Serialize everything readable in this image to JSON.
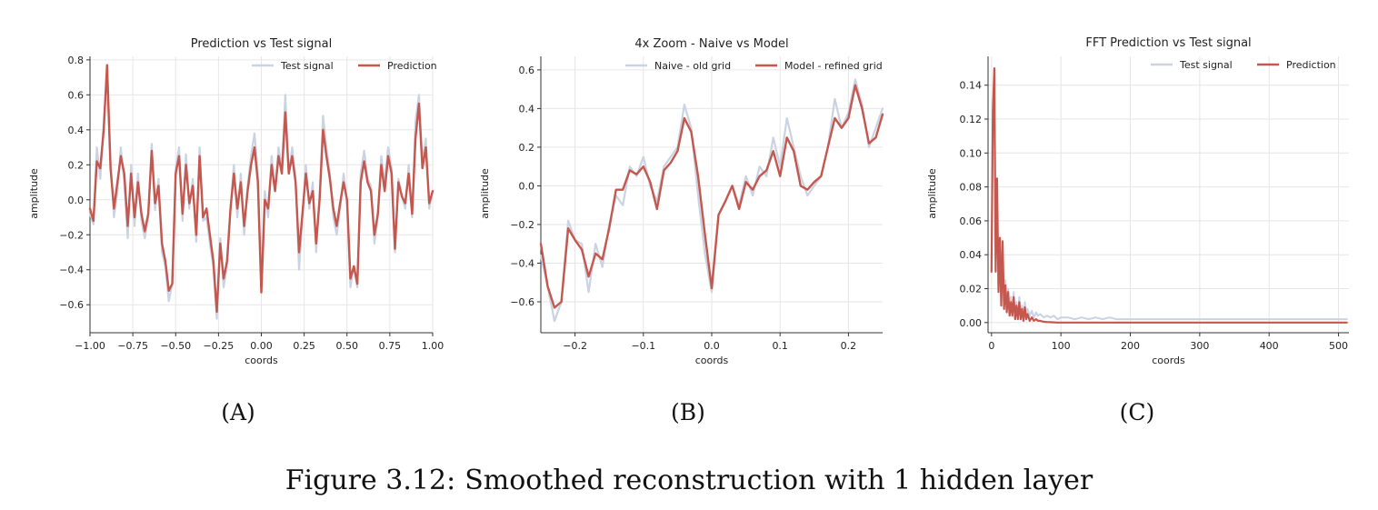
{
  "caption": {
    "label": "Figure 3.12:",
    "text": "Smoothed reconstruction with 1 hidden layer"
  },
  "colors": {
    "test": "#c9d3e3",
    "prediction": "#c4574e"
  },
  "chart_data": [
    {
      "id": "A",
      "sublabel": "(A)",
      "type": "line",
      "title": "Prediction vs Test signal",
      "xlabel": "coords",
      "ylabel": "amplitude",
      "xlim": [
        -1.0,
        1.0
      ],
      "ylim": [
        -0.76,
        0.82
      ],
      "xticks": [
        -1.0,
        -0.75,
        -0.5,
        -0.25,
        0.0,
        0.25,
        0.5,
        0.75,
        1.0
      ],
      "xtick_labels": [
        "−1.00",
        "−0.75",
        "−0.50",
        "−0.25",
        "0.00",
        "0.25",
        "0.50",
        "0.75",
        "1.00"
      ],
      "yticks": [
        -0.6,
        -0.4,
        -0.2,
        0.0,
        0.2,
        0.4,
        0.6,
        0.8
      ],
      "ytick_labels": [
        "−0.6",
        "−0.4",
        "−0.2",
        "0.0",
        "0.2",
        "0.4",
        "0.6",
        "0.8"
      ],
      "grid": true,
      "legend_position": "top-right",
      "series": [
        {
          "name": "Test signal",
          "role": "test",
          "width": 2.2,
          "x": [
            -1.0,
            -0.98,
            -0.96,
            -0.94,
            -0.92,
            -0.9,
            -0.88,
            -0.86,
            -0.84,
            -0.82,
            -0.8,
            -0.78,
            -0.76,
            -0.74,
            -0.72,
            -0.7,
            -0.68,
            -0.66,
            -0.64,
            -0.62,
            -0.6,
            -0.58,
            -0.56,
            -0.54,
            -0.52,
            -0.5,
            -0.48,
            -0.46,
            -0.44,
            -0.42,
            -0.4,
            -0.38,
            -0.36,
            -0.34,
            -0.32,
            -0.3,
            -0.28,
            -0.26,
            -0.24,
            -0.22,
            -0.2,
            -0.18,
            -0.16,
            -0.14,
            -0.12,
            -0.1,
            -0.08,
            -0.06,
            -0.04,
            -0.02,
            0.0,
            0.02,
            0.04,
            0.06,
            0.08,
            0.1,
            0.12,
            0.14,
            0.16,
            0.18,
            0.2,
            0.22,
            0.24,
            0.26,
            0.28,
            0.3,
            0.32,
            0.34,
            0.36,
            0.38,
            0.4,
            0.42,
            0.44,
            0.46,
            0.48,
            0.5,
            0.52,
            0.54,
            0.56,
            0.58,
            0.6,
            0.62,
            0.64,
            0.66,
            0.68,
            0.7,
            0.72,
            0.74,
            0.76,
            0.78,
            0.8,
            0.82,
            0.84,
            0.86,
            0.88,
            0.9,
            0.92,
            0.94,
            0.96,
            0.98,
            1.0
          ],
          "y": [
            -0.08,
            -0.14,
            0.3,
            0.12,
            0.44,
            0.74,
            0.22,
            -0.1,
            0.05,
            0.3,
            0.1,
            -0.22,
            0.2,
            -0.15,
            0.15,
            -0.12,
            -0.22,
            -0.1,
            0.32,
            -0.06,
            0.12,
            -0.3,
            -0.38,
            -0.58,
            -0.48,
            0.18,
            0.3,
            -0.12,
            0.26,
            -0.05,
            0.12,
            -0.24,
            0.3,
            -0.12,
            -0.1,
            -0.25,
            -0.38,
            -0.68,
            -0.22,
            -0.5,
            -0.38,
            -0.05,
            0.2,
            -0.1,
            0.15,
            -0.2,
            0.08,
            0.25,
            0.38,
            0.15,
            -0.5,
            0.05,
            -0.1,
            0.25,
            0.05,
            0.3,
            0.18,
            0.6,
            0.15,
            0.3,
            0.12,
            -0.4,
            -0.1,
            0.2,
            -0.05,
            0.1,
            -0.3,
            0.02,
            0.48,
            0.3,
            0.15,
            -0.1,
            -0.2,
            -0.05,
            0.15,
            -0.02,
            -0.5,
            -0.38,
            -0.5,
            0.15,
            0.28,
            0.12,
            0.08,
            -0.25,
            -0.1,
            0.25,
            0.1,
            0.3,
            0.18,
            -0.3,
            0.12,
            0.02,
            -0.05,
            0.2,
            -0.1,
            0.45,
            0.6,
            0.22,
            0.35,
            -0.05,
            0.05
          ]
        },
        {
          "name": "Prediction",
          "role": "prediction",
          "width": 2.4,
          "x": [
            -1.0,
            -0.98,
            -0.96,
            -0.94,
            -0.92,
            -0.9,
            -0.88,
            -0.86,
            -0.84,
            -0.82,
            -0.8,
            -0.78,
            -0.76,
            -0.74,
            -0.72,
            -0.7,
            -0.68,
            -0.66,
            -0.64,
            -0.62,
            -0.6,
            -0.58,
            -0.56,
            -0.54,
            -0.52,
            -0.5,
            -0.48,
            -0.46,
            -0.44,
            -0.42,
            -0.4,
            -0.38,
            -0.36,
            -0.34,
            -0.32,
            -0.3,
            -0.28,
            -0.26,
            -0.24,
            -0.22,
            -0.2,
            -0.18,
            -0.16,
            -0.14,
            -0.12,
            -0.1,
            -0.08,
            -0.06,
            -0.04,
            -0.02,
            0.0,
            0.02,
            0.04,
            0.06,
            0.08,
            0.1,
            0.12,
            0.14,
            0.16,
            0.18,
            0.2,
            0.22,
            0.24,
            0.26,
            0.28,
            0.3,
            0.32,
            0.34,
            0.36,
            0.38,
            0.4,
            0.42,
            0.44,
            0.46,
            0.48,
            0.5,
            0.52,
            0.54,
            0.56,
            0.58,
            0.6,
            0.62,
            0.64,
            0.66,
            0.68,
            0.7,
            0.72,
            0.74,
            0.76,
            0.78,
            0.8,
            0.82,
            0.84,
            0.86,
            0.88,
            0.9,
            0.92,
            0.94,
            0.96,
            0.98,
            1.0
          ],
          "y": [
            -0.05,
            -0.12,
            0.22,
            0.18,
            0.4,
            0.77,
            0.18,
            -0.05,
            0.1,
            0.25,
            0.15,
            -0.15,
            0.15,
            -0.1,
            0.1,
            -0.08,
            -0.18,
            -0.08,
            0.28,
            -0.02,
            0.08,
            -0.25,
            -0.35,
            -0.52,
            -0.48,
            0.15,
            0.25,
            -0.08,
            0.2,
            -0.02,
            0.08,
            -0.2,
            0.25,
            -0.1,
            -0.05,
            -0.2,
            -0.35,
            -0.64,
            -0.25,
            -0.45,
            -0.35,
            -0.05,
            0.15,
            -0.05,
            0.1,
            -0.15,
            0.05,
            0.2,
            0.3,
            0.1,
            -0.53,
            0.0,
            -0.05,
            0.2,
            0.05,
            0.25,
            0.15,
            0.5,
            0.15,
            0.25,
            0.1,
            -0.3,
            -0.08,
            0.15,
            -0.02,
            0.05,
            -0.25,
            0.0,
            0.4,
            0.25,
            0.12,
            -0.05,
            -0.15,
            -0.02,
            0.1,
            0.0,
            -0.45,
            -0.38,
            -0.48,
            0.1,
            0.22,
            0.1,
            0.05,
            -0.2,
            -0.08,
            0.2,
            0.05,
            0.25,
            0.15,
            -0.28,
            0.1,
            0.02,
            -0.02,
            0.15,
            -0.08,
            0.35,
            0.55,
            0.18,
            0.3,
            -0.02,
            0.05
          ]
        }
      ]
    },
    {
      "id": "B",
      "sublabel": "(B)",
      "type": "line",
      "title": "4x Zoom - Naive vs Model",
      "xlabel": "coords",
      "ylabel": "amplitude",
      "xlim": [
        -0.25,
        0.25
      ],
      "ylim": [
        -0.76,
        0.67
      ],
      "xticks": [
        -0.2,
        -0.1,
        0.0,
        0.1,
        0.2
      ],
      "xtick_labels": [
        "−0.2",
        "−0.1",
        "0.0",
        "0.1",
        "0.2"
      ],
      "yticks": [
        -0.6,
        -0.4,
        -0.2,
        0.0,
        0.2,
        0.4,
        0.6
      ],
      "ytick_labels": [
        "−0.6",
        "−0.4",
        "−0.2",
        "0.0",
        "0.2",
        "0.4",
        "0.6"
      ],
      "grid": true,
      "legend_position": "top-right",
      "series": [
        {
          "name": "Naive - old grid",
          "role": "test",
          "width": 2.2,
          "x": [
            -0.25,
            -0.24,
            -0.23,
            -0.22,
            -0.21,
            -0.2,
            -0.19,
            -0.18,
            -0.17,
            -0.16,
            -0.15,
            -0.14,
            -0.13,
            -0.12,
            -0.11,
            -0.1,
            -0.09,
            -0.08,
            -0.07,
            -0.06,
            -0.05,
            -0.04,
            -0.03,
            -0.02,
            -0.01,
            0.0,
            0.01,
            0.02,
            0.03,
            0.04,
            0.05,
            0.06,
            0.07,
            0.08,
            0.09,
            0.1,
            0.11,
            0.12,
            0.13,
            0.14,
            0.15,
            0.16,
            0.17,
            0.18,
            0.19,
            0.2,
            0.21,
            0.22,
            0.23,
            0.24,
            0.25
          ],
          "y": [
            -0.36,
            -0.52,
            -0.7,
            -0.6,
            -0.18,
            -0.28,
            -0.3,
            -0.55,
            -0.3,
            -0.42,
            -0.2,
            -0.05,
            -0.1,
            0.1,
            0.05,
            0.15,
            0.0,
            -0.08,
            0.1,
            0.15,
            0.2,
            0.42,
            0.3,
            -0.05,
            -0.35,
            -0.55,
            -0.15,
            -0.08,
            0.0,
            -0.1,
            0.05,
            -0.05,
            0.1,
            0.05,
            0.25,
            0.1,
            0.35,
            0.2,
            0.05,
            -0.05,
            0.0,
            0.05,
            0.2,
            0.45,
            0.3,
            0.38,
            0.55,
            0.42,
            0.2,
            0.3,
            0.4
          ]
        },
        {
          "name": "Model - refined grid",
          "role": "prediction",
          "width": 2.4,
          "x": [
            -0.25,
            -0.24,
            -0.23,
            -0.22,
            -0.21,
            -0.2,
            -0.19,
            -0.18,
            -0.17,
            -0.16,
            -0.15,
            -0.14,
            -0.13,
            -0.12,
            -0.11,
            -0.1,
            -0.09,
            -0.08,
            -0.07,
            -0.06,
            -0.05,
            -0.04,
            -0.03,
            -0.02,
            -0.01,
            0.0,
            0.01,
            0.02,
            0.03,
            0.04,
            0.05,
            0.06,
            0.07,
            0.08,
            0.09,
            0.1,
            0.11,
            0.12,
            0.13,
            0.14,
            0.15,
            0.16,
            0.17,
            0.18,
            0.19,
            0.2,
            0.21,
            0.22,
            0.23,
            0.24,
            0.25
          ],
          "y": [
            -0.3,
            -0.52,
            -0.63,
            -0.6,
            -0.22,
            -0.28,
            -0.33,
            -0.47,
            -0.35,
            -0.38,
            -0.22,
            -0.02,
            -0.02,
            0.08,
            0.06,
            0.1,
            0.02,
            -0.12,
            0.08,
            0.12,
            0.18,
            0.35,
            0.28,
            0.05,
            -0.25,
            -0.53,
            -0.15,
            -0.08,
            0.0,
            -0.12,
            0.02,
            -0.02,
            0.05,
            0.08,
            0.18,
            0.05,
            0.25,
            0.18,
            0.0,
            -0.02,
            0.02,
            0.05,
            0.2,
            0.35,
            0.3,
            0.35,
            0.52,
            0.4,
            0.22,
            0.25,
            0.37
          ]
        }
      ]
    },
    {
      "id": "C",
      "sublabel": "(C)",
      "type": "line",
      "title": "FFT Prediction vs Test signal",
      "xlabel": "coords",
      "ylabel": "amplitude",
      "xlim": [
        -5,
        515
      ],
      "ylim": [
        -0.006,
        0.157
      ],
      "xticks": [
        0,
        100,
        200,
        300,
        400,
        500
      ],
      "xtick_labels": [
        "0",
        "100",
        "200",
        "300",
        "400",
        "500"
      ],
      "yticks": [
        0.0,
        0.02,
        0.04,
        0.06,
        0.08,
        0.1,
        0.12,
        0.14
      ],
      "ytick_labels": [
        "0.00",
        "0.02",
        "0.04",
        "0.06",
        "0.08",
        "0.10",
        "0.12",
        "0.14"
      ],
      "grid": true,
      "legend_position": "top-right",
      "series": [
        {
          "name": "Test signal",
          "role": "test",
          "width": 2.0,
          "x": [
            0,
            2,
            4,
            6,
            8,
            10,
            12,
            14,
            16,
            18,
            20,
            22,
            24,
            26,
            28,
            30,
            32,
            34,
            36,
            38,
            40,
            42,
            44,
            46,
            48,
            50,
            52,
            55,
            58,
            61,
            64,
            67,
            70,
            75,
            80,
            85,
            90,
            95,
            100,
            110,
            120,
            130,
            140,
            150,
            160,
            170,
            180,
            190,
            200,
            220,
            240,
            260,
            280,
            300,
            320,
            340,
            360,
            380,
            400,
            420,
            440,
            460,
            480,
            500,
            512
          ],
          "y": [
            0.03,
            0.12,
            0.14,
            0.035,
            0.08,
            0.02,
            0.05,
            0.01,
            0.045,
            0.01,
            0.025,
            0.008,
            0.02,
            0.005,
            0.015,
            0.006,
            0.018,
            0.004,
            0.012,
            0.003,
            0.015,
            0.004,
            0.01,
            0.003,
            0.012,
            0.005,
            0.008,
            0.004,
            0.007,
            0.003,
            0.006,
            0.004,
            0.005,
            0.003,
            0.004,
            0.003,
            0.004,
            0.002,
            0.003,
            0.003,
            0.002,
            0.003,
            0.002,
            0.003,
            0.002,
            0.003,
            0.002,
            0.002,
            0.002,
            0.002,
            0.002,
            0.002,
            0.002,
            0.002,
            0.002,
            0.002,
            0.002,
            0.002,
            0.002,
            0.002,
            0.002,
            0.002,
            0.002,
            0.002,
            0.002
          ]
        },
        {
          "name": "Prediction",
          "role": "prediction",
          "width": 2.2,
          "x": [
            0,
            2,
            4,
            6,
            8,
            10,
            12,
            14,
            16,
            18,
            20,
            22,
            24,
            26,
            28,
            30,
            32,
            34,
            36,
            38,
            40,
            42,
            44,
            46,
            48,
            50,
            52,
            55,
            58,
            61,
            64,
            67,
            70,
            75,
            80,
            85,
            90,
            95,
            100,
            110,
            120,
            130,
            140,
            150,
            160,
            170,
            180,
            190,
            200,
            220,
            240,
            260,
            280,
            300,
            320,
            340,
            360,
            380,
            400,
            420,
            440,
            460,
            480,
            500,
            512
          ],
          "y": [
            0.03,
            0.125,
            0.15,
            0.03,
            0.085,
            0.018,
            0.05,
            0.01,
            0.048,
            0.008,
            0.022,
            0.006,
            0.018,
            0.004,
            0.012,
            0.004,
            0.015,
            0.002,
            0.01,
            0.002,
            0.012,
            0.002,
            0.008,
            0.001,
            0.009,
            0.002,
            0.005,
            0.001,
            0.003,
            0.001,
            0.002,
            0.001,
            0.001,
            0.0005,
            0.0003,
            0.0002,
            0.0001,
            0.0,
            0.0,
            0.0,
            0.0,
            0.0,
            0.0,
            0.0,
            0.0,
            0.0,
            0.0,
            0.0,
            0.0,
            0.0,
            0.0,
            0.0,
            0.0,
            0.0,
            0.0,
            0.0,
            0.0,
            0.0,
            0.0,
            0.0,
            0.0,
            0.0,
            0.0,
            0.0,
            0.0
          ]
        }
      ]
    }
  ]
}
